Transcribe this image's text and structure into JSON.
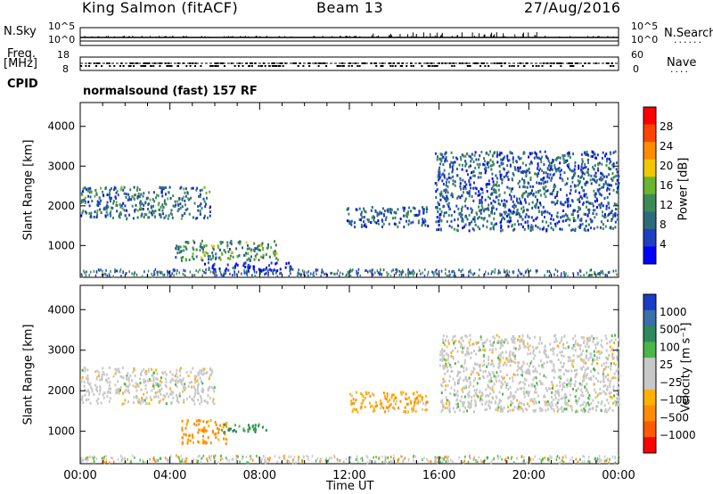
{
  "header": {
    "station": "King Salmon (fitACF)",
    "beam": "Beam 13",
    "date": "27/Aug/2016"
  },
  "left_labels": {
    "nsky": "N.Sky",
    "freq": "Freq.",
    "freq_unit": "[MHz]",
    "cpid": "CPID"
  },
  "right_labels": {
    "nsearch": "N.Search",
    "nave": "Nave"
  },
  "status_strip": {
    "noise_ticks_left": [
      "10^5",
      "10^0"
    ],
    "noise_ticks_right": [
      "10^5",
      "10^0"
    ],
    "freq_ticks_left": [
      "18",
      "8"
    ],
    "nave_ticks_right": [
      "60",
      "0"
    ],
    "cpid_text": "normalsound (fast) 157 RF"
  },
  "colors": {
    "power_scale": [
      "#0000ff",
      "#1f3fbf",
      "#2e6b7a",
      "#3d8a57",
      "#6ab42f",
      "#f0c800",
      "#ff8c00",
      "#ff4400",
      "#ff0000"
    ],
    "velocity_scale": [
      "#ff0000",
      "#ff5a00",
      "#ff8c00",
      "#ffb000",
      "#c8c8c8",
      "#c8c8c8",
      "#49b749",
      "#2e8a5a",
      "#3a6fa8",
      "#1a3cc8"
    ]
  },
  "chart_data": [
    {
      "type": "heatmap",
      "name": "power",
      "xlabel": "",
      "ylabel": "Slant Range [km]",
      "y_ticks": [
        1000,
        2000,
        3000,
        4000
      ],
      "ylim": [
        200,
        4600
      ],
      "xlim": [
        0,
        24
      ],
      "colorbar": {
        "label": "Power [dB]",
        "ticks": [
          4,
          8,
          12,
          16,
          20,
          24,
          28
        ],
        "range": [
          0,
          32
        ]
      },
      "regions": [
        {
          "t": [
            0.0,
            5.8
          ],
          "r": [
            1700,
            2500
          ],
          "value": 10
        },
        {
          "t": [
            4.2,
            8.8
          ],
          "r": [
            650,
            1150
          ],
          "value": 14
        },
        {
          "t": [
            5.5,
            9.5
          ],
          "r": [
            400,
            600
          ],
          "value": 5
        },
        {
          "t": [
            11.8,
            15.5
          ],
          "r": [
            1500,
            2000
          ],
          "value": 9
        },
        {
          "t": [
            15.8,
            24.0
          ],
          "r": [
            1400,
            3400
          ],
          "value": 9
        }
      ]
    },
    {
      "type": "heatmap",
      "name": "velocity",
      "xlabel": "Time UT",
      "ylabel": "Slant Range [km]",
      "y_ticks": [
        1000,
        2000,
        3000,
        4000
      ],
      "ylim": [
        200,
        4600
      ],
      "xlim": [
        0,
        24
      ],
      "x_tick_labels": [
        "00:00",
        "04:00",
        "08:00",
        "12:00",
        "16:00",
        "20:00",
        "00:00"
      ],
      "colorbar": {
        "label": "Velocity [m s⁻¹]",
        "ticks": [
          "1000",
          "500",
          "100",
          "25",
          "−25",
          "−100",
          "−500",
          "−1000"
        ]
      },
      "regions": [
        {
          "t": [
            0.0,
            6.0
          ],
          "r": [
            1700,
            2600
          ],
          "value": 0
        },
        {
          "t": [
            4.5,
            6.5
          ],
          "r": [
            700,
            1300
          ],
          "value": -150
        },
        {
          "t": [
            6.2,
            8.5
          ],
          "r": [
            1000,
            1200
          ],
          "value": 150
        },
        {
          "t": [
            12.0,
            15.5
          ],
          "r": [
            1500,
            2000
          ],
          "value": -80
        },
        {
          "t": [
            16.0,
            24.0
          ],
          "r": [
            1500,
            3400
          ],
          "value": 0
        }
      ]
    }
  ]
}
